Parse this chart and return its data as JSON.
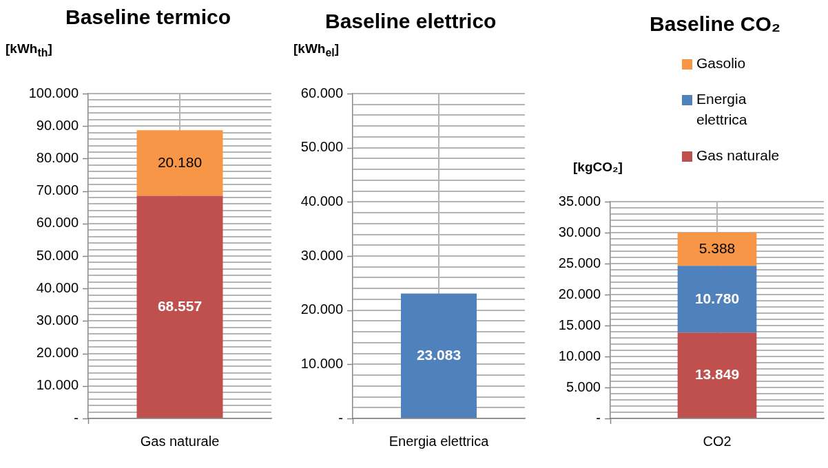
{
  "chart_data": [
    {
      "type": "bar",
      "title": "Baseline termico",
      "ylabel": "[kWh$_{th}$]",
      "categories": [
        "Gas naturale"
      ],
      "stacked": true,
      "grid": true,
      "legend": false,
      "series": [
        {
          "color": "#c0504d",
          "values": [
            68557
          ],
          "value_labels": [
            "68.557"
          ]
        },
        {
          "color": "#f79646",
          "values": [
            20180
          ],
          "value_labels": [
            "20.180"
          ]
        }
      ],
      "ylim": [
        0,
        100000
      ],
      "yticks": [
        {
          "value": 0,
          "label": "-"
        },
        {
          "value": 2000,
          "label": null
        },
        {
          "value": 4000,
          "label": null
        },
        {
          "value": 6000,
          "label": null
        },
        {
          "value": 8000,
          "label": null
        },
        {
          "value": 10000,
          "label": "10.000"
        },
        {
          "value": 12000,
          "label": null
        },
        {
          "value": 14000,
          "label": null
        },
        {
          "value": 16000,
          "label": null
        },
        {
          "value": 18000,
          "label": null
        },
        {
          "value": 20000,
          "label": "20.000"
        },
        {
          "value": 22000,
          "label": null
        },
        {
          "value": 24000,
          "label": null
        },
        {
          "value": 26000,
          "label": null
        },
        {
          "value": 28000,
          "label": null
        },
        {
          "value": 30000,
          "label": "30.000"
        },
        {
          "value": 32000,
          "label": null
        },
        {
          "value": 34000,
          "label": null
        },
        {
          "value": 36000,
          "label": null
        },
        {
          "value": 38000,
          "label": null
        },
        {
          "value": 40000,
          "label": "40.000"
        },
        {
          "value": 42000,
          "label": null
        },
        {
          "value": 44000,
          "label": null
        },
        {
          "value": 46000,
          "label": null
        },
        {
          "value": 48000,
          "label": null
        },
        {
          "value": 50000,
          "label": "50.000"
        },
        {
          "value": 52000,
          "label": null
        },
        {
          "value": 54000,
          "label": null
        },
        {
          "value": 56000,
          "label": null
        },
        {
          "value": 58000,
          "label": null
        },
        {
          "value": 60000,
          "label": "60.000"
        },
        {
          "value": 62000,
          "label": null
        },
        {
          "value": 64000,
          "label": null
        },
        {
          "value": 66000,
          "label": null
        },
        {
          "value": 68000,
          "label": null
        },
        {
          "value": 70000,
          "label": "70.000"
        },
        {
          "value": 72000,
          "label": null
        },
        {
          "value": 74000,
          "label": null
        },
        {
          "value": 76000,
          "label": null
        },
        {
          "value": 78000,
          "label": null
        },
        {
          "value": 80000,
          "label": "80.000"
        },
        {
          "value": 82000,
          "label": null
        },
        {
          "value": 84000,
          "label": null
        },
        {
          "value": 86000,
          "label": null
        },
        {
          "value": 88000,
          "label": null
        },
        {
          "value": 90000,
          "label": "90.000"
        },
        {
          "value": 92000,
          "label": null
        },
        {
          "value": 94000,
          "label": null
        },
        {
          "value": 96000,
          "label": null
        },
        {
          "value": 98000,
          "label": null
        },
        {
          "value": 100000,
          "label": "100.000"
        }
      ]
    },
    {
      "type": "bar",
      "title": "Baseline elettrico",
      "ylabel": "[kWh$_{el}$]",
      "categories": [
        "Energia elettrica"
      ],
      "grid": true,
      "legend": false,
      "series": [
        {
          "color": "#4f81bd",
          "values": [
            23083
          ],
          "value_labels": [
            "23.083"
          ]
        }
      ],
      "ylim": [
        0,
        60000
      ],
      "yticks": [
        {
          "value": 0,
          "label": "-"
        },
        {
          "value": 2000,
          "label": null
        },
        {
          "value": 4000,
          "label": null
        },
        {
          "value": 6000,
          "label": null
        },
        {
          "value": 8000,
          "label": null
        },
        {
          "value": 10000,
          "label": "10.000"
        },
        {
          "value": 12000,
          "label": null
        },
        {
          "value": 14000,
          "label": null
        },
        {
          "value": 16000,
          "label": null
        },
        {
          "value": 18000,
          "label": null
        },
        {
          "value": 20000,
          "label": "20.000"
        },
        {
          "value": 22000,
          "label": null
        },
        {
          "value": 24000,
          "label": null
        },
        {
          "value": 26000,
          "label": null
        },
        {
          "value": 28000,
          "label": null
        },
        {
          "value": 30000,
          "label": "30.000"
        },
        {
          "value": 32000,
          "label": null
        },
        {
          "value": 34000,
          "label": null
        },
        {
          "value": 36000,
          "label": null
        },
        {
          "value": 38000,
          "label": null
        },
        {
          "value": 40000,
          "label": "40.000"
        },
        {
          "value": 42000,
          "label": null
        },
        {
          "value": 44000,
          "label": null
        },
        {
          "value": 46000,
          "label": null
        },
        {
          "value": 48000,
          "label": null
        },
        {
          "value": 50000,
          "label": "50.000"
        },
        {
          "value": 52000,
          "label": null
        },
        {
          "value": 54000,
          "label": null
        },
        {
          "value": 56000,
          "label": null
        },
        {
          "value": 58000,
          "label": null
        },
        {
          "value": 60000,
          "label": "60.000"
        }
      ]
    },
    {
      "type": "bar",
      "title": "Baseline CO₂",
      "ylabel": "[kgCO₂]",
      "categories": [
        "CO2"
      ],
      "stacked": true,
      "grid": true,
      "legend": "top right",
      "series": [
        {
          "name": "Gas naturale",
          "color": "#c0504d",
          "values": [
            13849
          ],
          "value_labels": [
            "13.849"
          ]
        },
        {
          "name": "Energia elettrica",
          "color": "#4f81bd",
          "values": [
            10780
          ],
          "value_labels": [
            "10.780"
          ]
        },
        {
          "name": "Gasolio",
          "color": "#f79646",
          "values": [
            5388
          ],
          "value_labels": [
            "5.388"
          ]
        }
      ],
      "ylim": [
        0,
        35000
      ],
      "yticks": [
        {
          "value": 0,
          "label": "-"
        },
        {
          "value": 1000,
          "label": null
        },
        {
          "value": 2000,
          "label": null
        },
        {
          "value": 3000,
          "label": null
        },
        {
          "value": 4000,
          "label": null
        },
        {
          "value": 5000,
          "label": "5.000"
        },
        {
          "value": 6000,
          "label": null
        },
        {
          "value": 7000,
          "label": null
        },
        {
          "value": 8000,
          "label": null
        },
        {
          "value": 9000,
          "label": null
        },
        {
          "value": 10000,
          "label": "10.000"
        },
        {
          "value": 11000,
          "label": null
        },
        {
          "value": 12000,
          "label": null
        },
        {
          "value": 13000,
          "label": null
        },
        {
          "value": 14000,
          "label": null
        },
        {
          "value": 15000,
          "label": "15.000"
        },
        {
          "value": 16000,
          "label": null
        },
        {
          "value": 17000,
          "label": null
        },
        {
          "value": 18000,
          "label": null
        },
        {
          "value": 19000,
          "label": null
        },
        {
          "value": 20000,
          "label": "20.000"
        },
        {
          "value": 21000,
          "label": null
        },
        {
          "value": 22000,
          "label": null
        },
        {
          "value": 23000,
          "label": null
        },
        {
          "value": 24000,
          "label": null
        },
        {
          "value": 25000,
          "label": "25.000"
        },
        {
          "value": 26000,
          "label": null
        },
        {
          "value": 27000,
          "label": null
        },
        {
          "value": 28000,
          "label": null
        },
        {
          "value": 29000,
          "label": null
        },
        {
          "value": 30000,
          "label": "30.000"
        },
        {
          "value": 31000,
          "label": null
        },
        {
          "value": 32000,
          "label": null
        },
        {
          "value": 33000,
          "label": null
        },
        {
          "value": 34000,
          "label": null
        },
        {
          "value": 35000,
          "label": "35.000"
        }
      ]
    }
  ]
}
